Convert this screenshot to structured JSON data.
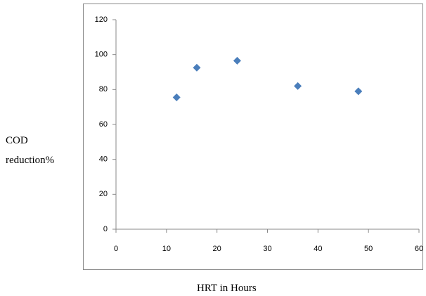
{
  "chart_data": {
    "type": "scatter",
    "x_label": "HRT in Hours",
    "y_label": "COD reduction%",
    "series": [
      {
        "x": [
          12,
          16,
          24,
          36,
          48
        ],
        "values": [
          75.5,
          92.5,
          96.5,
          82,
          79
        ],
        "color": "#4a7ebb"
      }
    ],
    "xlim": [
      0,
      60
    ],
    "xticks": [
      0,
      10,
      20,
      30,
      40,
      50,
      60
    ],
    "ylim": [
      0,
      120
    ],
    "yticks": [
      0,
      20,
      40,
      60,
      80,
      100,
      120
    ],
    "grid": false
  }
}
